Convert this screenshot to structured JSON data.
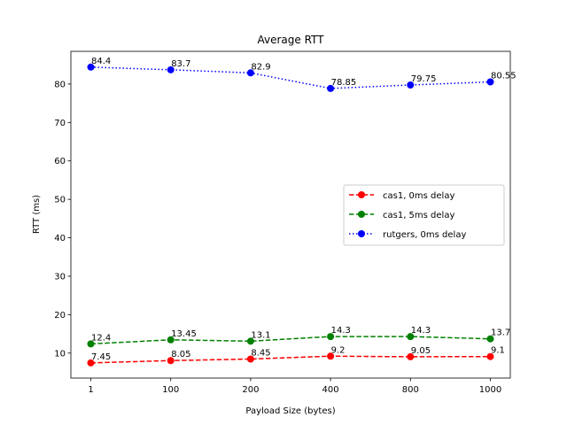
{
  "chart_data": {
    "type": "line",
    "title": "Average RTT",
    "xlabel": "Payload Size (bytes)",
    "ylabel": "RTT (ms)",
    "categories": [
      "1",
      "100",
      "200",
      "400",
      "800",
      "1000"
    ],
    "ylim": [
      3.5,
      88.5
    ],
    "yticks": [
      10,
      20,
      30,
      40,
      50,
      60,
      70,
      80
    ],
    "grid": false,
    "legend_position": "center-right",
    "series": [
      {
        "name": "cas1, 0ms delay",
        "color": "#ff0000",
        "linestyle": "dashed",
        "values": [
          7.45,
          8.05,
          8.45,
          9.2,
          9.05,
          9.1
        ],
        "labels": [
          "7.45",
          "8.05",
          "8.45",
          "9.2",
          "9.05",
          "9.1"
        ]
      },
      {
        "name": "cas1, 5ms delay",
        "color": "#008000",
        "linestyle": "dashed",
        "values": [
          12.4,
          13.45,
          13.1,
          14.3,
          14.3,
          13.7
        ],
        "labels": [
          "12.4",
          "13.45",
          "13.1",
          "14.3",
          "14.3",
          "13.7"
        ]
      },
      {
        "name": "rutgers, 0ms delay",
        "color": "#0000ff",
        "linestyle": "dotted",
        "values": [
          84.4,
          83.7,
          82.9,
          78.85,
          79.75,
          80.55
        ],
        "labels": [
          "84.4",
          "83.7",
          "82.9",
          "78.85",
          "79.75",
          "80.55"
        ]
      }
    ]
  }
}
